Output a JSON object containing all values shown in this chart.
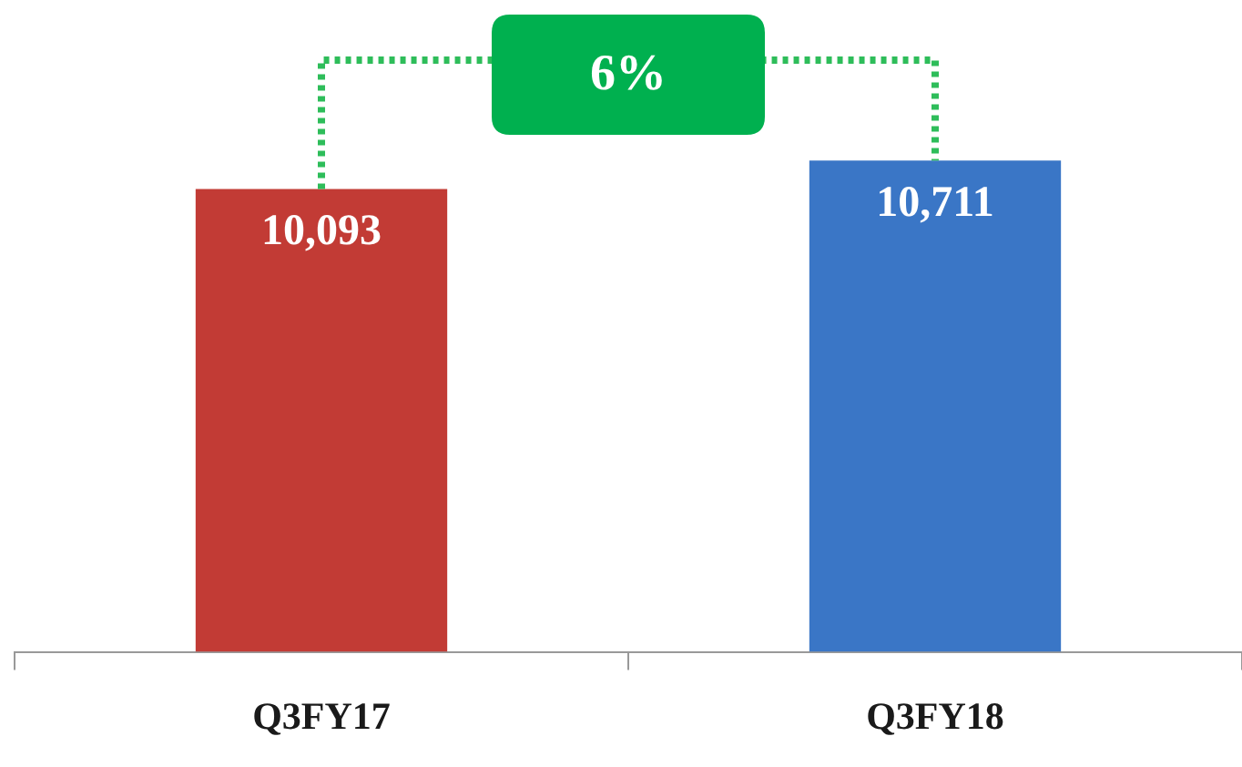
{
  "chart_data": {
    "type": "bar",
    "categories": [
      "Q3FY17",
      "Q3FY18"
    ],
    "values": [
      10093,
      10711
    ],
    "colors": [
      "#c23b35",
      "#3a76c6"
    ],
    "tick_labels": "x",
    "data_labels": true,
    "value_labels": [
      "10,093",
      "10,711"
    ],
    "annotations": [
      "6%"
    ],
    "grid": false,
    "legend": false
  }
}
